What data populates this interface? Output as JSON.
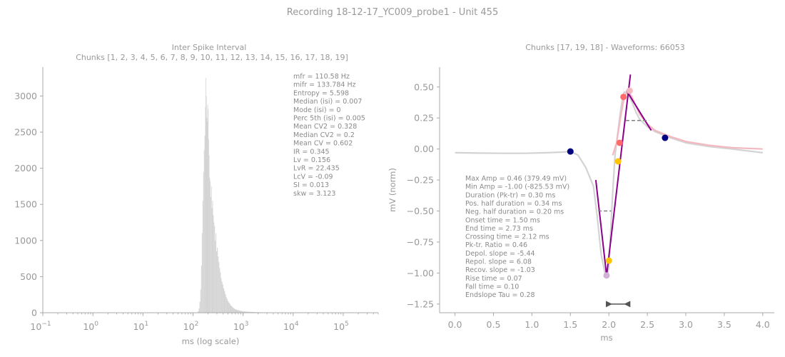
{
  "figure": {
    "suptitle": "Recording 18-12-17_YC009_probe1 - Unit 455"
  },
  "chart_data": [
    {
      "type": "bar",
      "title": "Inter Spike Interval",
      "subtitle": "Chunks [1, 2, 3, 4, 5, 6, 7, 8, 9, 10, 11, 12, 13, 14, 15, 16, 17, 18, 19]",
      "xlabel": "ms (log scale)",
      "ylabel": "",
      "xscale": "log",
      "xlim": [
        0.1,
        500000
      ],
      "ylim": [
        0,
        3400
      ],
      "x_ticks": [
        {
          "value": 0.1,
          "base": "10",
          "exp": "−1"
        },
        {
          "value": 1,
          "base": "10",
          "exp": "0"
        },
        {
          "value": 10,
          "base": "10",
          "exp": "1"
        },
        {
          "value": 100,
          "base": "10",
          "exp": "2"
        },
        {
          "value": 1000,
          "base": "10",
          "exp": "3"
        },
        {
          "value": 10000,
          "base": "10",
          "exp": "4"
        },
        {
          "value": 100000,
          "base": "10",
          "exp": "5"
        }
      ],
      "y_ticks": [
        "0",
        "500",
        "1000",
        "1500",
        "2000",
        "2500",
        "3000"
      ],
      "bar_color": "#d3d3d3",
      "bins": [
        [
          120,
          5
        ],
        [
          125,
          20
        ],
        [
          130,
          60
        ],
        [
          135,
          150
        ],
        [
          140,
          320
        ],
        [
          145,
          650
        ],
        [
          150,
          1100
        ],
        [
          155,
          1550
        ],
        [
          160,
          1950
        ],
        [
          165,
          2250
        ],
        [
          170,
          2450
        ],
        [
          175,
          2850
        ],
        [
          178,
          3250
        ],
        [
          182,
          3000
        ],
        [
          186,
          2700
        ],
        [
          190,
          2650
        ],
        [
          194,
          2880
        ],
        [
          198,
          2820
        ],
        [
          202,
          2400
        ],
        [
          207,
          2180
        ],
        [
          212,
          1870
        ],
        [
          218,
          1820
        ],
        [
          224,
          1600
        ],
        [
          230,
          1750
        ],
        [
          236,
          1450
        ],
        [
          243,
          1550
        ],
        [
          250,
          1350
        ],
        [
          258,
          1250
        ],
        [
          266,
          1200
        ],
        [
          274,
          1000
        ],
        [
          283,
          1100
        ],
        [
          292,
          850
        ],
        [
          302,
          900
        ],
        [
          312,
          780
        ],
        [
          323,
          700
        ],
        [
          334,
          620
        ],
        [
          346,
          560
        ],
        [
          358,
          480
        ],
        [
          371,
          430
        ],
        [
          385,
          390
        ],
        [
          400,
          340
        ],
        [
          416,
          300
        ],
        [
          433,
          260
        ],
        [
          451,
          220
        ],
        [
          470,
          190
        ],
        [
          490,
          160
        ],
        [
          512,
          140
        ],
        [
          536,
          120
        ],
        [
          561,
          100
        ],
        [
          588,
          85
        ],
        [
          617,
          70
        ],
        [
          648,
          60
        ],
        [
          681,
          50
        ],
        [
          717,
          43
        ],
        [
          755,
          38
        ],
        [
          796,
          33
        ],
        [
          840,
          29
        ],
        [
          887,
          25
        ],
        [
          937,
          22
        ],
        [
          990,
          20
        ],
        [
          1050,
          18
        ],
        [
          1120,
          16
        ],
        [
          1200,
          14
        ],
        [
          1290,
          13
        ],
        [
          1390,
          12
        ],
        [
          1500,
          10
        ],
        [
          1630,
          9
        ],
        [
          1780,
          8
        ],
        [
          1950,
          7
        ],
        [
          2150,
          6
        ],
        [
          2400,
          5
        ],
        [
          2700,
          4
        ],
        [
          3100,
          3
        ],
        [
          3600,
          3
        ],
        [
          4200,
          2
        ],
        [
          5000,
          2
        ],
        [
          6000,
          1
        ],
        [
          7500,
          1
        ],
        [
          9500,
          1
        ]
      ],
      "stats": [
        "mfr = 110.58 Hz",
        "mifr = 133.784 Hz",
        "Entropy = 5.598",
        "Median (isi) = 0.007",
        "Mode (isi) = 0",
        "Perc 5th (isi) = 0.005",
        "Mean CV2 = 0.328",
        "Median CV2 = 0.2",
        "Mean CV = 0.602",
        "IR = 0.345",
        "Lv = 0.156",
        "LvR = 22.435",
        "LcV = -0.09",
        "SI = 0.013",
        "skw = 3.123"
      ]
    },
    {
      "type": "line",
      "title": "Chunks [17, 19, 18] - Waveforms: 66053",
      "xlabel": "ms",
      "ylabel": "mV (norm)",
      "xlim": [
        -0.2,
        4.15
      ],
      "ylim": [
        -1.32,
        0.66
      ],
      "x_ticks": [
        "0.0",
        "0.5",
        "1.0",
        "1.5",
        "2.0",
        "2.5",
        "3.0",
        "3.5",
        "4.0"
      ],
      "y_ticks": [
        "0.50",
        "0.25",
        "0.00",
        "−0.25",
        "−0.50",
        "−0.75",
        "−1.00",
        "−1.25"
      ],
      "series": [
        {
          "color": "#d3d3d3",
          "x": [
            0,
            0.3,
            0.6,
            0.9,
            1.2,
            1.4,
            1.5,
            1.6,
            1.7,
            1.8,
            1.85,
            1.9,
            1.95,
            1.98,
            2.0,
            2.02,
            2.05,
            2.08,
            2.1,
            2.12,
            2.15,
            2.18,
            2.2,
            2.25,
            2.3,
            2.35,
            2.4,
            2.5,
            2.6,
            2.8,
            3.0,
            3.3,
            3.6,
            4.0
          ],
          "y": [
            -0.03,
            -0.033,
            -0.035,
            -0.035,
            -0.03,
            -0.025,
            -0.02,
            -0.05,
            -0.15,
            -0.3,
            -0.55,
            -0.85,
            -1.0,
            -1.02,
            -0.95,
            -0.7,
            -0.35,
            -0.05,
            0.05,
            0.15,
            0.3,
            0.42,
            0.46,
            0.44,
            0.38,
            0.3,
            0.24,
            0.18,
            0.14,
            0.09,
            0.05,
            0.02,
            0.0,
            -0.03
          ]
        },
        {
          "color": "#f4b8c0",
          "x": [
            2.05,
            2.1,
            2.15,
            2.2,
            2.25,
            2.3,
            2.35,
            2.4,
            2.5,
            2.6,
            2.8,
            3.0,
            3.3,
            3.6,
            4.0
          ],
          "y": [
            -0.05,
            0.05,
            0.25,
            0.42,
            0.47,
            0.42,
            0.35,
            0.28,
            0.2,
            0.15,
            0.1,
            0.06,
            0.03,
            0.01,
            0.0
          ]
        },
        {
          "color": "#8b008b",
          "x": [
            1.83,
            1.97,
            2.28
          ],
          "y": [
            -0.25,
            -1.02,
            0.6
          ]
        },
        {
          "color": "#8b008b",
          "x": [
            2.23,
            2.55
          ],
          "y": [
            0.47,
            0.15
          ]
        }
      ],
      "dashed_segments": [
        {
          "x": [
            1.86,
            2.03
          ],
          "y": [
            -0.5,
            -0.5
          ],
          "color": "#808080"
        },
        {
          "x": [
            2.22,
            2.52
          ],
          "y": [
            0.23,
            0.23
          ],
          "color": "#808080"
        }
      ],
      "points": [
        {
          "x": 1.5,
          "y": -0.02,
          "color": "#000080"
        },
        {
          "x": 2.73,
          "y": 0.09,
          "color": "#000080"
        },
        {
          "x": 1.97,
          "y": -1.02,
          "color": "#d3b0d8"
        },
        {
          "x": 2.27,
          "y": 0.47,
          "color": "#f4b8c0"
        },
        {
          "x": 2.0,
          "y": -0.9,
          "color": "#ffc400"
        },
        {
          "x": 2.12,
          "y": -0.1,
          "color": "#ffc400"
        },
        {
          "x": 2.14,
          "y": 0.05,
          "color": "#ff6b6b"
        },
        {
          "x": 2.19,
          "y": 0.42,
          "color": "#ff6b6b"
        }
      ],
      "bracket": {
        "x": [
          1.97,
          2.27
        ],
        "y": -1.25,
        "color": "#555555"
      },
      "stats": [
        "Max Amp = 0.46 (379.49 mV)",
        "Min Amp = -1.00 (-825.53 mV)",
        "Duration (Pk-tr) = 0.30 ms",
        "Pos. half duration = 0.34 ms",
        "Neg. half duration = 0.20 ms",
        "Onset time = 1.50 ms",
        "End time = 2.73 ms",
        "Crossing time = 2.12 ms",
        "Pk-tr. Ratio = 0.46",
        "Depol. slope = -5.44",
        "Repol. slope = 6.08",
        "Recov. slope = -1.03",
        "Rise time = 0.07",
        "Fall time = 0.10",
        "Endslope Tau = 0.28"
      ]
    }
  ]
}
